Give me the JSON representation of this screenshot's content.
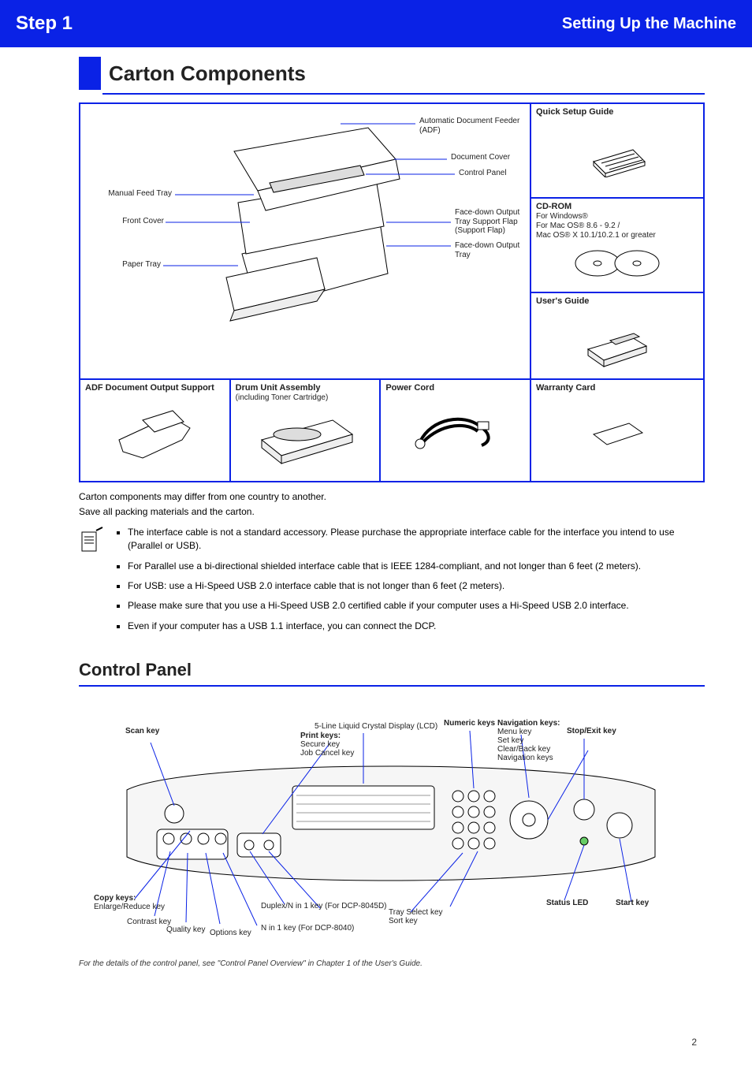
{
  "banner": {
    "left": "Setting Up the Machine",
    "right": "Step 1"
  },
  "section": {
    "title": "Carton Components"
  },
  "note": {
    "line1": "Carton components may differ from one country to another.",
    "line2": "Save all packing materials and the carton.",
    "bullets": [
      "The interface cable is not a standard accessory. Please purchase the appropriate interface cable for the interface you intend to use (Parallel or USB).",
      "For Parallel use a bi-directional shielded interface cable that is IEEE 1284-compliant, and not longer than 6 feet (2 meters).",
      "For USB: use a Hi-Speed USB 2.0 interface cable that is not longer than 6 feet (2 meters).",
      "Please make sure that you use a Hi-Speed USB 2.0 certified cable if your computer uses a Hi-Speed USB 2.0 interface.",
      "Even if your computer has a USB 1.1 interface, you can connect the DCP."
    ]
  },
  "callouts": {
    "adf": "Automatic Document Feeder (ADF)",
    "cover": "Document Cover",
    "panel": "Control Panel",
    "manual": "Manual Feed Tray",
    "front": "Front Cover",
    "outtray_support": "Face-down Output Tray Support Flap (Support Flap)",
    "tray": "Paper Tray",
    "outtray": "Face-down Output Tray"
  },
  "right_cells": {
    "guide": {
      "title": "Quick Setup Guide"
    },
    "cd": {
      "title": "CD-ROM",
      "sub": "For Windows®\nFor Mac OS® 8.6 - 9.2 /\nMac OS® X 10.1/10.2.1 or greater"
    },
    "users": {
      "title": "User's Guide"
    }
  },
  "bottom_cells": {
    "adf_support": {
      "title": "ADF Document Output Support"
    },
    "drum": {
      "title": "Drum Unit Assembly",
      "sub": "(including Toner Cartridge)"
    },
    "power": {
      "title": "Power Cord"
    },
    "card": {
      "title": "Warranty Card"
    }
  },
  "control": {
    "title": "Control Panel",
    "caption": "For the details of the control panel, see \"Control Panel Overview\" in Chapter 1 of the User's Guide.",
    "labels": {
      "scan": "Scan key",
      "copy": "Copy keys:",
      "enlarge": "Enlarge/Reduce key",
      "contrast": "Contrast key",
      "quality": "Quality key",
      "options": "Options key",
      "lcd": "5-Line Liquid Crystal Display (LCD)",
      "nav": "Navigation keys:",
      "menu": "Menu key",
      "set": "Set key",
      "clear": "Clear/Back key",
      "arrows": "Navigation keys",
      "numeric": "Numeric keys",
      "print": "Print keys:",
      "secure": "Secure key",
      "cancel": "Job Cancel key",
      "dup": "Duplex/N in 1 key (For DCP-8045D)",
      "nin1": "N in 1 key (For DCP-8040)",
      "sort": "Tray Select key\nSort key",
      "status": "Status LED",
      "stop": "Stop/Exit key",
      "start": "Start key"
    }
  },
  "colors": {
    "accent": "#0a22e6",
    "text": "#222222",
    "bg": "#ffffff"
  },
  "page": {
    "num": "2"
  }
}
